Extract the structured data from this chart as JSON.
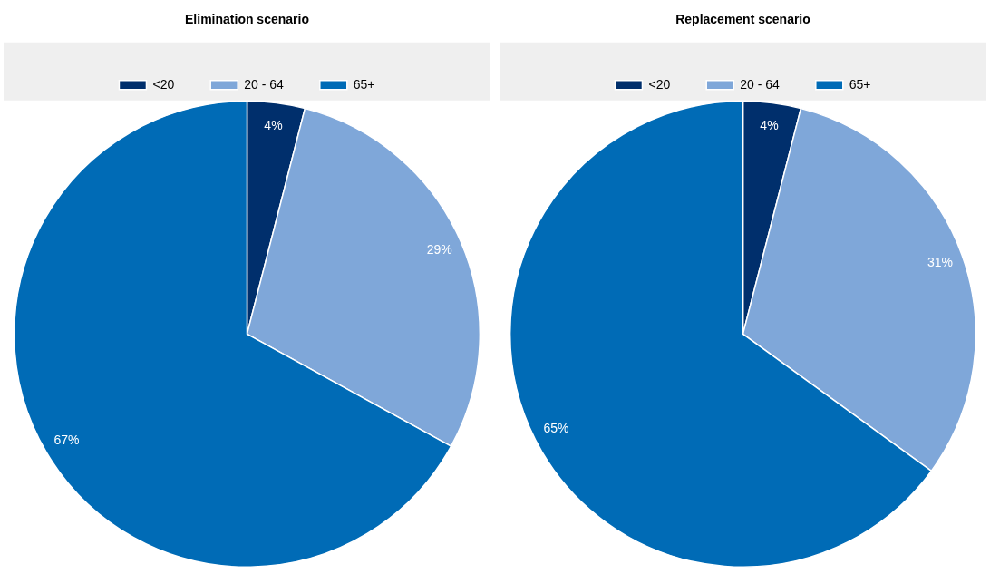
{
  "chart_data": [
    {
      "type": "pie",
      "title": "Elimination scenario",
      "categories": [
        "<20",
        "20 - 64",
        "65+"
      ],
      "values": [
        4,
        29,
        67
      ],
      "colors": [
        "#002f6c",
        "#7fa7d9",
        "#006bb6"
      ],
      "value_labels": [
        "4%",
        "29%",
        "67%"
      ],
      "legend": "top"
    },
    {
      "type": "pie",
      "title": "Replacement scenario",
      "categories": [
        "<20",
        "20 - 64",
        "65+"
      ],
      "values": [
        4,
        31,
        65
      ],
      "colors": [
        "#002f6c",
        "#7fa7d9",
        "#006bb6"
      ],
      "value_labels": [
        "4%",
        "31%",
        "65%"
      ],
      "legend": "top"
    }
  ]
}
